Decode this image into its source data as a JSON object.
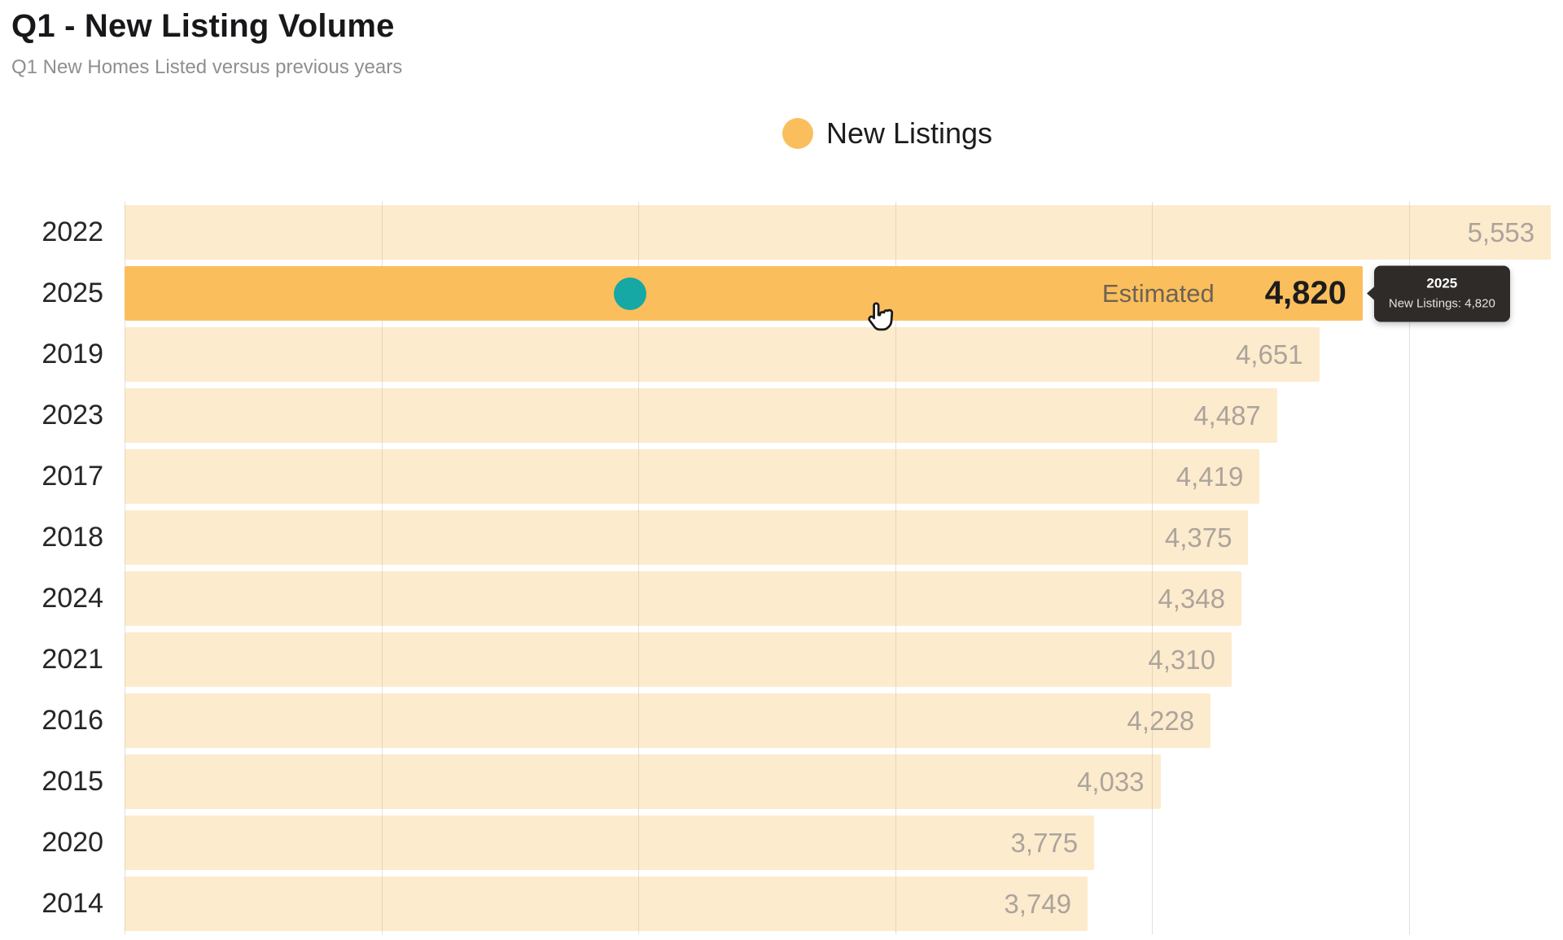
{
  "header": {
    "title": "Q1 - New Listing Volume",
    "subtitle": "Q1 New Homes Listed versus previous years"
  },
  "legend": {
    "label": "New Listings",
    "color": "#FBBE5C"
  },
  "chart_data": {
    "type": "bar",
    "orientation": "horizontal",
    "title": "Q1 - New Listing Volume",
    "series_name": "New Listings",
    "categories": [
      "2022",
      "2025",
      "2019",
      "2023",
      "2017",
      "2018",
      "2024",
      "2021",
      "2016",
      "2015",
      "2020",
      "2014"
    ],
    "values": [
      5553,
      4820,
      4651,
      4487,
      4419,
      4375,
      4348,
      4310,
      4228,
      4033,
      3775,
      3749
    ],
    "value_labels": [
      "5,553",
      "4,820",
      "4,651",
      "4,487",
      "4,419",
      "4,375",
      "4,348",
      "4,310",
      "4,228",
      "4,033",
      "3,775",
      "3,749"
    ],
    "highlight_category": "2025",
    "highlight_note": "Estimated",
    "marker_value": 1968,
    "xlim": [
      0,
      5600
    ],
    "gridline_step": 1000,
    "grid": true,
    "legend_position": "top-center",
    "colors": {
      "bar": "rgba(250,190,92,0.30)",
      "highlight": "#FBBE5C",
      "marker": "#16a8a5"
    }
  },
  "tooltip": {
    "title": "2025",
    "line": "New Listings: 4,820"
  }
}
